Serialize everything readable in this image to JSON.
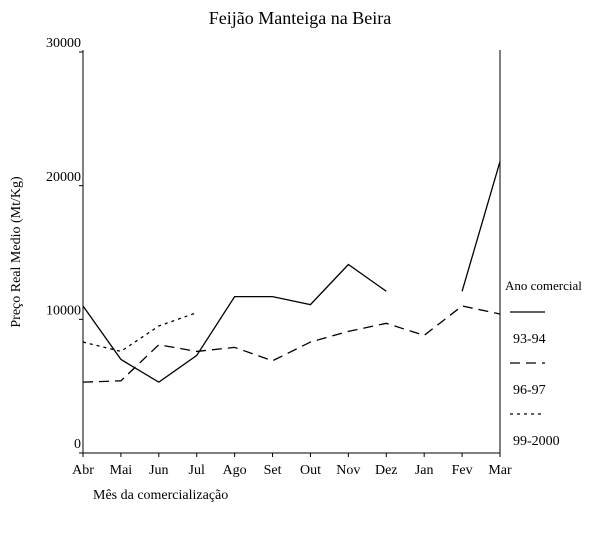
{
  "chart_data": {
    "type": "line",
    "title": "Feijão Manteiga na Beira",
    "x_label": "Mês da comercialização",
    "y_label": "Preço Real Medio (Mt/Kg)",
    "legend_title": "Ano comercial",
    "categories": [
      "Abr",
      "Mai",
      "Jun",
      "Jul",
      "Ago",
      "Set",
      "Out",
      "Nov",
      "Dez",
      "Jan",
      "Fev",
      "Mar"
    ],
    "series": [
      {
        "name": "93-94",
        "color": "#000000",
        "dash": "solid",
        "values": [
          11000,
          7000,
          5300,
          7300,
          11700,
          11700,
          11100,
          14100,
          12100,
          null,
          12100,
          21800
        ]
      },
      {
        "name": "96-97",
        "color": "#000000",
        "dash": "dashed",
        "values": [
          5300,
          5400,
          8100,
          7600,
          7900,
          6900,
          8300,
          9100,
          9700,
          8800,
          11000,
          10400
        ]
      },
      {
        "name": "99-2000",
        "color": "#000000",
        "dash": "dotted",
        "values": [
          8300,
          7600,
          9500,
          10500,
          null,
          null,
          null,
          null,
          null,
          null,
          null,
          null
        ]
      }
    ],
    "ylim": [
      0,
      30000
    ],
    "yticks": [
      0,
      10000,
      20000,
      30000
    ],
    "grid": false
  }
}
